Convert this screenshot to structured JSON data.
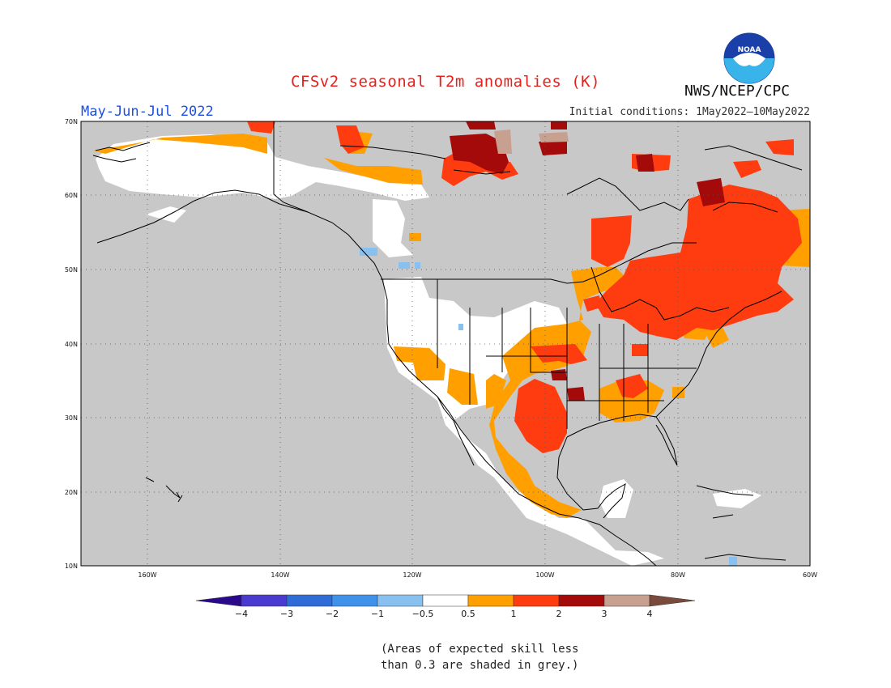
{
  "header": {
    "title": "CFSv2 seasonal T2m anomalies (K)",
    "season": "May-Jun-Jul 2022",
    "agency": "NWS/NCEP/CPC",
    "initial_conditions": "Initial conditions: 1May2022–10May2022",
    "logo_text": "NOAA"
  },
  "map": {
    "lat_labels": [
      "70N",
      "60N",
      "50N",
      "40N",
      "30N",
      "20N",
      "10N"
    ],
    "lon_labels": [
      "160W",
      "140W",
      "120W",
      "100W",
      "80W",
      "60W"
    ],
    "lat_range": [
      10,
      70
    ],
    "lon_range": [
      -170,
      -60
    ],
    "grid": "dotted, every 10 degrees",
    "skill_mask_color": "#c8c8c8"
  },
  "colorbar": {
    "tick_labels": [
      "−4",
      "−3",
      "−2",
      "−1",
      "−0.5",
      "0.5",
      "1",
      "2",
      "3",
      "4"
    ],
    "colors": [
      "#2a0a8a",
      "#4a3ad0",
      "#2f6cd8",
      "#3f92ec",
      "#88c0f0",
      "#ffffff",
      "#ffa000",
      "#ff3c10",
      "#a50a0a",
      "#c8a090",
      "#7a4a3a"
    ]
  },
  "footnote": {
    "line1": "(Areas of expected skill less",
    "line2": "than 0.3 are shaded in grey.)"
  }
}
